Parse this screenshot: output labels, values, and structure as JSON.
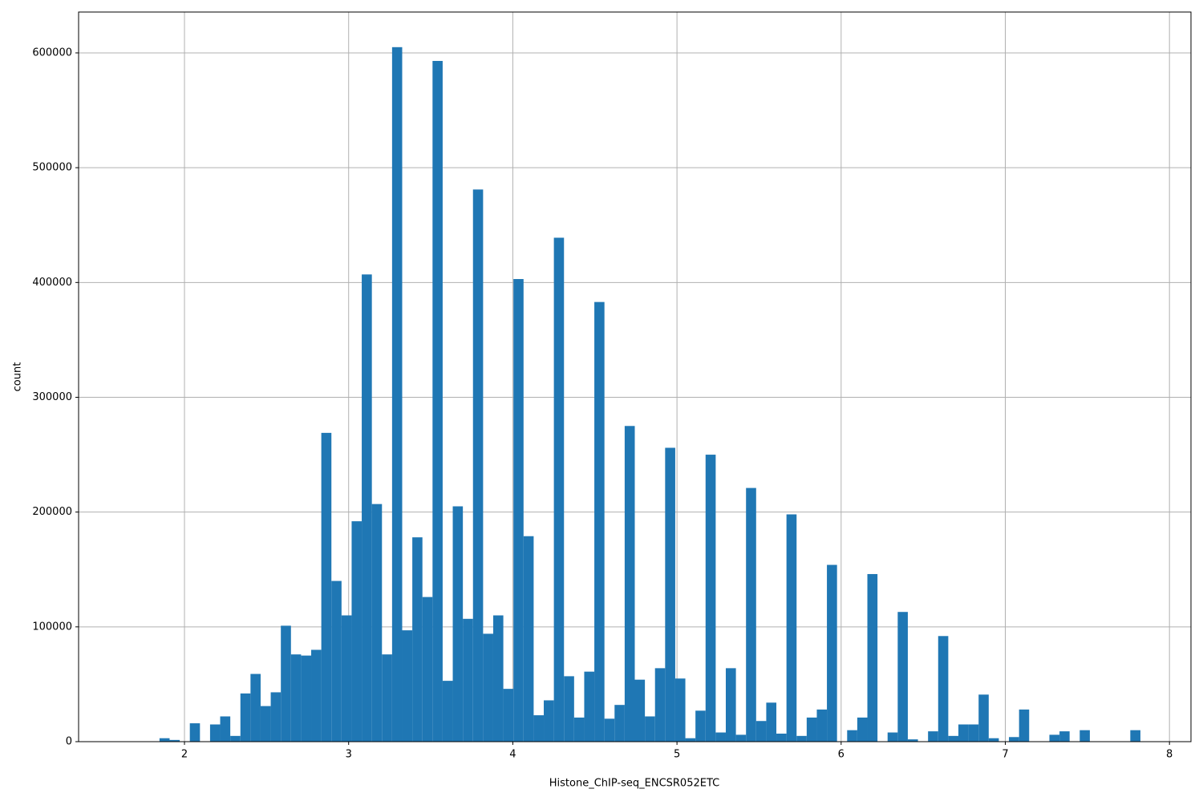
{
  "chart_data": {
    "type": "histogram",
    "xlabel": "Histone_ChIP-seq_ENCSR052ETC",
    "ylabel": "count",
    "color": "#1f77b4",
    "grid": true,
    "bins": [
      1.663,
      1.7246,
      1.7862,
      1.8478,
      1.9094,
      1.971,
      2.0326,
      2.0942,
      2.1558,
      2.2174,
      2.279,
      2.3406,
      2.4022,
      2.4638,
      2.5254,
      2.587,
      2.6486,
      2.7102,
      2.7718,
      2.8334,
      2.895,
      2.9566,
      3.0182,
      3.0798,
      3.1414,
      3.203,
      3.2646,
      3.3262,
      3.3878,
      3.4494,
      3.511,
      3.5726,
      3.6342,
      3.6958,
      3.7574,
      3.819,
      3.8806,
      3.9422,
      4.0038,
      4.0654,
      4.127,
      4.1886,
      4.2502,
      4.3118,
      4.3734,
      4.435,
      4.4966,
      4.5582,
      4.6198,
      4.6814,
      4.743,
      4.8046,
      4.8662,
      4.9278,
      4.9894,
      5.051,
      5.1126,
      5.1742,
      5.2358,
      5.2974,
      5.359,
      5.4206,
      5.4822,
      5.5438,
      5.6054,
      5.667,
      5.7286,
      5.7902,
      5.8518,
      5.9134,
      5.975,
      6.0366,
      6.0982,
      6.1598,
      6.2214,
      6.283,
      6.3446,
      6.4062,
      6.4678,
      6.5294,
      6.591,
      6.6526,
      6.7142,
      6.7758,
      6.8374,
      6.899,
      6.9606,
      7.0222,
      7.0838,
      7.1454,
      7.207,
      7.2686,
      7.3302,
      7.3918,
      7.4534,
      7.515,
      7.5766,
      7.6382,
      7.6998,
      7.7614,
      7.823
    ],
    "counts": [
      0,
      0,
      0,
      3000,
      1500,
      0,
      16000,
      0,
      15000,
      22000,
      5000,
      42000,
      59000,
      31000,
      43000,
      101000,
      76000,
      75000,
      80000,
      269000,
      140000,
      110000,
      192000,
      407000,
      207000,
      76000,
      605000,
      97000,
      178000,
      126000,
      593000,
      53000,
      205000,
      107000,
      481000,
      94000,
      110000,
      46000,
      403000,
      179000,
      23000,
      36000,
      439000,
      57000,
      21000,
      61000,
      383000,
      20000,
      32000,
      275000,
      54000,
      22000,
      64000,
      256000,
      55000,
      3000,
      27000,
      250000,
      8000,
      64000,
      6000,
      221000,
      18000,
      34000,
      7000,
      198000,
      5000,
      21000,
      28000,
      154000,
      0,
      10000,
      21000,
      146000,
      0,
      8000,
      113000,
      2000,
      0,
      9000,
      92000,
      5000,
      15000,
      15000,
      41000,
      3000,
      0,
      4000,
      28000,
      0,
      0,
      6000,
      9000,
      0,
      10000,
      0,
      0,
      0,
      0,
      10000
    ],
    "xlim": [
      1.355,
      8.131
    ],
    "xticks": [
      2,
      3,
      4,
      5,
      6,
      7,
      8
    ],
    "ylim": [
      0,
      635600
    ],
    "yticks": [
      0,
      100000,
      200000,
      300000,
      400000,
      500000,
      600000
    ]
  }
}
